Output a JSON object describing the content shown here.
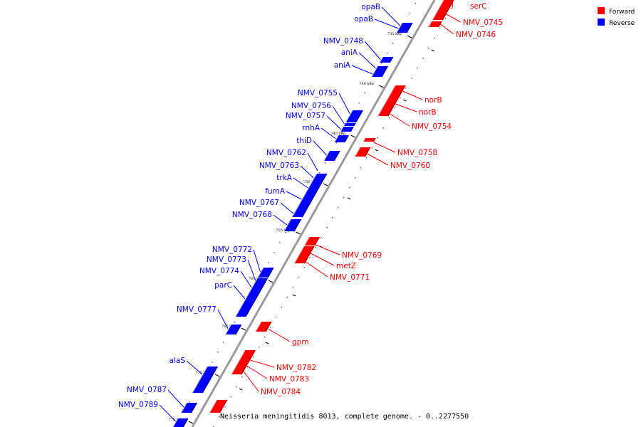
{
  "title": "Neisseria meningitidis 8013, complete genome. - 0..2277550",
  "legend": [
    {
      "label": "Forward",
      "color": "#ff0000"
    },
    {
      "label": "Reverse",
      "color": "#0000ff"
    }
  ],
  "colors": {
    "forward": "#ff0000",
    "reverse": "#0000ff",
    "forward_dark": "#b00000",
    "reverse_dark": "#000090",
    "forward_light": "#ffb0b0",
    "reverse_light": "#b0b0ff",
    "backbone": "#9a9a9a"
  },
  "kbp_labels": [
    "735 kbp",
    "740 kbp",
    "745 kbp",
    "750 kbp",
    "755 kbp",
    "760 kbp",
    "765 kbp",
    "770 kbp",
    "775 kbp"
  ],
  "forward_genes": [
    "serC",
    "NMV_0745",
    "NMV_0746",
    "norB",
    "norB",
    "NMV_0754",
    "NMV_0758",
    "NMV_0760",
    "NMV_0769",
    "metZ",
    "NMV_0771",
    "gpm",
    "NMV_0782",
    "NMV_0783",
    "NMV_0784"
  ],
  "reverse_genes": [
    "opaB",
    "opaB",
    "NMV_0748",
    "aniA",
    "aniA",
    "NMV_0755",
    "NMV_0756",
    "NMV_0757",
    "rnhA",
    "thiD",
    "NMV_0762",
    "NMV_0763",
    "trkA",
    "fumA",
    "NMV_0767",
    "NMV_0768",
    "NMV_0772",
    "NMV_0773",
    "NMV_0774",
    "parC",
    "NMV_0777",
    "alaS",
    "NMV_0787",
    "NMV_0789"
  ]
}
